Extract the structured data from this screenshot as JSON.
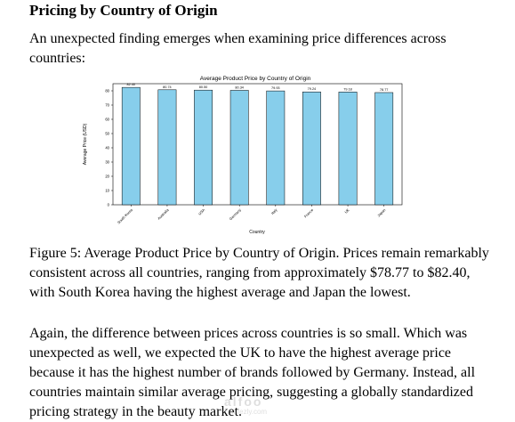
{
  "section": {
    "heading": "Pricing by Country of Origin",
    "intro": "An unexpected finding emerges when examining price differences across countries:",
    "caption": "Figure 5: Average Product Price by Country of Origin. Prices remain remarkably consistent across all countries, ranging from approximately $78.77 to $82.40, with South Korea having the highest average and Japan the lowest.",
    "discussion": "Again, the difference between prices across countries is so small. Which was unexpected as well, we expected the UK to have the highest average price because it has the highest number of brands followed by Germany. Instead, all countries maintain similar average pricing, suggesting a globally standardized pricing strategy in the beauty market."
  },
  "watermark": {
    "text": "alfoo",
    "subtext": "nafezly.com"
  },
  "chart_data": {
    "type": "bar",
    "title": "Average Product Price by Country of Origin",
    "xlabel": "Country",
    "ylabel": "Average Price (USD)",
    "categories": [
      "South Korea",
      "Australia",
      "USA",
      "Germany",
      "Italy",
      "France",
      "UK",
      "Japan"
    ],
    "values": [
      82.4,
      80.74,
      80.5,
      80.34,
      79.93,
      79.24,
      79.18,
      78.77
    ],
    "value_labels": [
      "82.40",
      "80.74",
      "80.50",
      "80.34",
      "79.93",
      "79.24",
      "79.18",
      "78.77"
    ],
    "ylim": [
      0,
      85
    ],
    "yticks": [
      0,
      10,
      20,
      30,
      40,
      50,
      60,
      70,
      80
    ],
    "grid": false,
    "bar_color": "#87ceeb",
    "bar_edge_color": "#000000"
  }
}
